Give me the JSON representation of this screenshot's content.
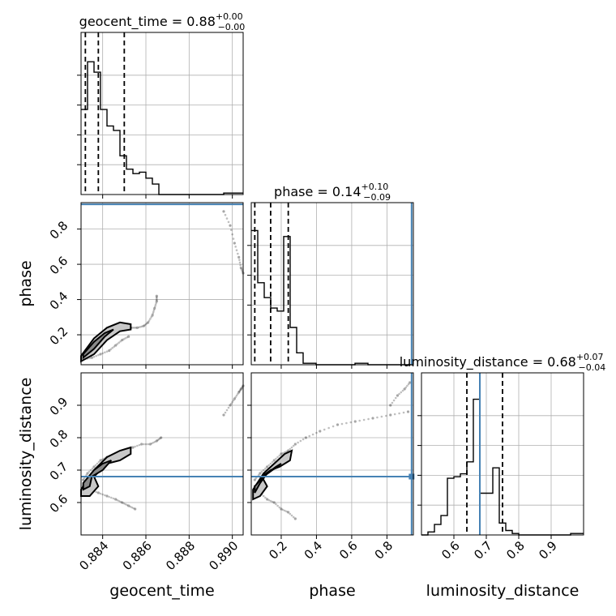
{
  "chart_data": {
    "type": "corner",
    "parameters": [
      "geocent_time",
      "phase",
      "luminosity_distance"
    ],
    "ranges": {
      "geocent_time": [
        0.883,
        0.8905
      ],
      "phase": [
        0.03,
        0.95
      ],
      "luminosity_distance": [
        0.5,
        1.0
      ]
    },
    "truths": {
      "geocent_time": null,
      "phase": 0.94,
      "luminosity_distance": 0.68
    },
    "truth_color": "#4682b4",
    "titles": [
      {
        "param": "geocent_time",
        "label": "geocent_time = 0.88",
        "sup": "+0.00",
        "sub": "−0.00"
      },
      {
        "param": "phase",
        "label": "phase = 0.14",
        "sup": "+0.10",
        "sub": "−0.09"
      },
      {
        "param": "luminosity_distance",
        "label": "luminosity_distance = 0.68",
        "sup": "+0.07",
        "sub": "−0.04"
      }
    ],
    "axis_labels": {
      "geocent_time": "geocent_time",
      "phase": "phase",
      "luminosity_distance": "luminosity_distance"
    },
    "ticks": {
      "geocent_time": [
        0.884,
        0.886,
        0.888,
        0.89
      ],
      "geocent_time_labels": [
        "0.884",
        "0.886",
        "0.888",
        "0.890"
      ],
      "phase": [
        0.2,
        0.4,
        0.6,
        0.8
      ],
      "phase_labels": [
        "0.2",
        "0.4",
        "0.6",
        "0.8"
      ],
      "luminosity_distance": [
        0.6,
        0.7,
        0.8,
        0.9
      ],
      "luminosity_distance_labels": [
        "0.6",
        "0.7",
        "0.8",
        "0.9"
      ]
    },
    "marginals": {
      "geocent_time": {
        "edges": [
          0.883,
          0.8833,
          0.8836,
          0.8839,
          0.8842,
          0.8845,
          0.8848,
          0.8851,
          0.8854,
          0.8857,
          0.886,
          0.8863,
          0.8866,
          0.8869,
          0.8872,
          0.8875,
          0.8878,
          0.8881,
          0.8884,
          0.8887,
          0.889,
          0.8893,
          0.8896,
          0.8899,
          0.8902,
          0.8905
        ],
        "counts": [
          0.57,
          0.89,
          0.82,
          0.57,
          0.46,
          0.43,
          0.26,
          0.17,
          0.14,
          0.15,
          0.11,
          0.07,
          0,
          0,
          0,
          0,
          0,
          0,
          0,
          0,
          0,
          0,
          0.01,
          0.01,
          0.01
        ],
        "quantiles": [
          0.8832,
          0.8838,
          0.885
        ],
        "ylim": [
          0,
          1
        ]
      },
      "phase": {
        "edges": [
          0.03,
          0.0668,
          0.1036,
          0.1404,
          0.1772,
          0.214,
          0.2508,
          0.2876,
          0.3244,
          0.3612,
          0.398,
          0.4348,
          0.4716,
          0.5084,
          0.5452,
          0.582,
          0.6188,
          0.6556,
          0.6924,
          0.7292,
          0.766,
          0.8028,
          0.8396,
          0.8764,
          0.9132,
          0.95
        ],
        "counts": [
          0.9,
          0.55,
          0.45,
          0.38,
          0.36,
          0.86,
          0.25,
          0.08,
          0.01,
          0.01,
          0,
          0,
          0,
          0,
          0,
          0,
          0.01,
          0.01,
          0,
          0,
          0,
          0,
          0,
          0,
          0
        ],
        "quantiles": [
          0.05,
          0.14,
          0.24
        ],
        "ylim": [
          0,
          1
        ]
      },
      "luminosity_distance": {
        "edges": [
          0.5,
          0.52,
          0.54,
          0.56,
          0.58,
          0.6,
          0.62,
          0.64,
          0.66,
          0.68,
          0.7,
          0.72,
          0.74,
          0.76,
          0.78,
          0.8,
          0.82,
          0.84,
          0.86,
          0.88,
          0.9,
          0.92,
          0.94,
          0.96,
          0.98,
          1.0
        ],
        "counts": [
          0,
          0.02,
          0.07,
          0.13,
          0.38,
          0.39,
          0.41,
          0.49,
          0.91,
          0.28,
          0.28,
          0.45,
          0.08,
          0.03,
          0.01,
          0,
          0,
          0,
          0,
          0,
          0,
          0,
          0,
          0.01,
          0.01
        ],
        "quantiles": [
          0.64,
          0.68,
          0.75
        ],
        "ylim": [
          0,
          1
        ]
      }
    },
    "scatter_tracks": {
      "phase_vs_geocent_time": [
        {
          "x": [
            0.8831,
            0.8833,
            0.8836,
            0.8839,
            0.8842,
            0.8845,
            0.8848,
            0.885,
            0.8853,
            0.8856,
            0.8859,
            0.8861,
            0.8863,
            0.8864,
            0.8865,
            0.8865
          ],
          "y": [
            0.09,
            0.11,
            0.15,
            0.19,
            0.22,
            0.24,
            0.25,
            0.25,
            0.24,
            0.24,
            0.25,
            0.27,
            0.31,
            0.35,
            0.39,
            0.42
          ]
        },
        {
          "x": [
            0.8831,
            0.8835,
            0.8839,
            0.8843,
            0.8846,
            0.8849,
            0.8852
          ],
          "y": [
            0.06,
            0.07,
            0.09,
            0.11,
            0.14,
            0.17,
            0.19
          ]
        },
        {
          "x": [
            0.8896,
            0.8899,
            0.8901,
            0.8903,
            0.8904,
            0.8905
          ],
          "y": [
            0.9,
            0.82,
            0.72,
            0.64,
            0.58,
            0.55
          ]
        }
      ],
      "ld_vs_geocent_time": [
        {
          "x": [
            0.8831,
            0.8833,
            0.8836,
            0.8839,
            0.8842,
            0.8846,
            0.885,
            0.8854,
            0.8858,
            0.8862,
            0.8865,
            0.8867
          ],
          "y": [
            0.67,
            0.69,
            0.71,
            0.73,
            0.74,
            0.75,
            0.76,
            0.77,
            0.78,
            0.78,
            0.79,
            0.8
          ]
        },
        {
          "x": [
            0.8831,
            0.8834,
            0.8838,
            0.8842,
            0.8846,
            0.8849,
            0.8852,
            0.8855
          ],
          "y": [
            0.65,
            0.64,
            0.63,
            0.62,
            0.61,
            0.6,
            0.59,
            0.58
          ]
        },
        {
          "x": [
            0.8896,
            0.8899,
            0.8901,
            0.8903,
            0.8904,
            0.8905
          ],
          "y": [
            0.87,
            0.9,
            0.92,
            0.94,
            0.95,
            0.96
          ]
        }
      ],
      "ld_vs_phase": [
        {
          "x": [
            0.05,
            0.08,
            0.12,
            0.16,
            0.2,
            0.24,
            0.28,
            0.34,
            0.42,
            0.52,
            0.62,
            0.72,
            0.82,
            0.92
          ],
          "y": [
            0.67,
            0.69,
            0.71,
            0.73,
            0.75,
            0.76,
            0.78,
            0.8,
            0.82,
            0.84,
            0.85,
            0.86,
            0.87,
            0.88
          ]
        },
        {
          "x": [
            0.05,
            0.08,
            0.12,
            0.16,
            0.2,
            0.24,
            0.28
          ],
          "y": [
            0.65,
            0.63,
            0.61,
            0.6,
            0.58,
            0.57,
            0.55
          ]
        },
        {
          "x": [
            0.82,
            0.86,
            0.9,
            0.93
          ],
          "y": [
            0.9,
            0.93,
            0.95,
            0.97
          ]
        }
      ]
    },
    "contours": {
      "phase_vs_geocent_time": {
        "outer": {
          "x": [
            0.883,
            0.8836,
            0.8842,
            0.8848,
            0.8853,
            0.8853,
            0.8848,
            0.8842,
            0.8836,
            0.883
          ],
          "y": [
            0.08,
            0.18,
            0.24,
            0.27,
            0.26,
            0.23,
            0.22,
            0.17,
            0.09,
            0.05
          ]
        },
        "inner": {
          "x": [
            0.8831,
            0.8836,
            0.8841,
            0.8845,
            0.8841,
            0.8836,
            0.8831
          ],
          "y": [
            0.09,
            0.16,
            0.21,
            0.23,
            0.19,
            0.12,
            0.07
          ]
        }
      },
      "ld_vs_geocent_time": {
        "outer": {
          "x": [
            0.883,
            0.8836,
            0.8842,
            0.8848,
            0.8853,
            0.8853,
            0.8848,
            0.8842,
            0.8836,
            0.8838,
            0.8834,
            0.883
          ],
          "y": [
            0.64,
            0.7,
            0.74,
            0.76,
            0.77,
            0.75,
            0.73,
            0.72,
            0.68,
            0.65,
            0.62,
            0.62
          ]
        },
        "inner": {
          "x": [
            0.8831,
            0.8836,
            0.884,
            0.8844,
            0.884,
            0.8835,
            0.8834,
            0.8831
          ],
          "y": [
            0.66,
            0.7,
            0.72,
            0.73,
            0.7,
            0.68,
            0.65,
            0.64
          ]
        }
      },
      "ld_vs_phase": {
        "outer": {
          "x": [
            0.04,
            0.1,
            0.16,
            0.22,
            0.26,
            0.25,
            0.19,
            0.14,
            0.09,
            0.12,
            0.08,
            0.04
          ],
          "y": [
            0.64,
            0.69,
            0.72,
            0.75,
            0.76,
            0.73,
            0.71,
            0.7,
            0.68,
            0.65,
            0.62,
            0.61
          ]
        },
        "inner": {
          "x": [
            0.05,
            0.1,
            0.15,
            0.2,
            0.17,
            0.12,
            0.08,
            0.05
          ],
          "y": [
            0.65,
            0.68,
            0.7,
            0.72,
            0.71,
            0.69,
            0.66,
            0.63
          ]
        }
      }
    }
  }
}
